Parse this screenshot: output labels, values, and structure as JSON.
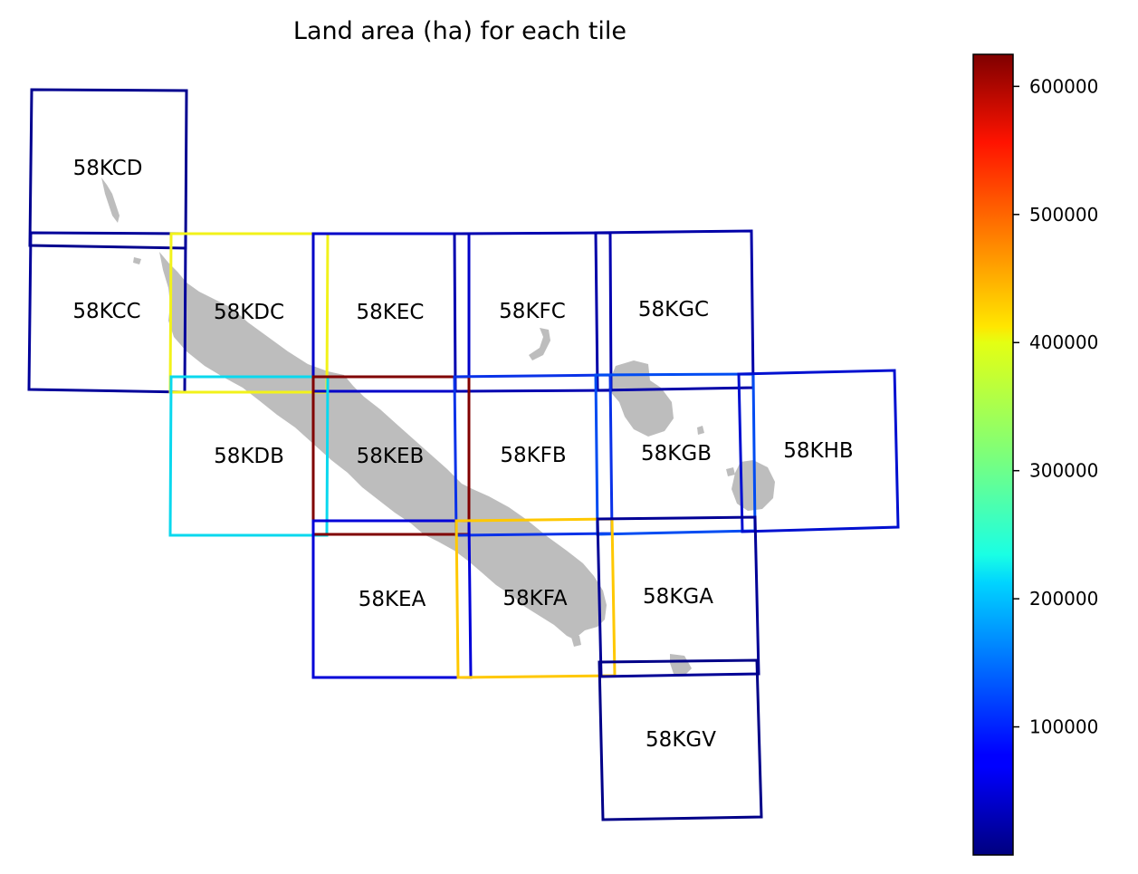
{
  "title": "Land area (ha) for each tile",
  "colorbar": {
    "colormap": "jet",
    "min": 0,
    "max": 625000,
    "ticks": [
      {
        "value": 100000,
        "label": "100000"
      },
      {
        "value": 200000,
        "label": "200000"
      },
      {
        "value": 300000,
        "label": "300000"
      },
      {
        "value": 400000,
        "label": "400000"
      },
      {
        "value": 500000,
        "label": "500000"
      },
      {
        "value": 600000,
        "label": "600000"
      }
    ]
  },
  "tiles": [
    {
      "name": "58KCD",
      "color": "#00008f"
    },
    {
      "name": "58KCC",
      "color": "#00009a"
    },
    {
      "name": "58KDC",
      "color": "#f2f21a"
    },
    {
      "name": "58KEC",
      "color": "#0000c8"
    },
    {
      "name": "58KFC",
      "color": "#0000b0"
    },
    {
      "name": "58KGC",
      "color": "#0000a8"
    },
    {
      "name": "58KDB",
      "color": "#0ad8ee"
    },
    {
      "name": "58KEB",
      "color": "#800000"
    },
    {
      "name": "58KFB",
      "color": "#0a32e8"
    },
    {
      "name": "58KGB",
      "color": "#004cf2"
    },
    {
      "name": "58KHB",
      "color": "#0010d0"
    },
    {
      "name": "58KEA",
      "color": "#0000d8"
    },
    {
      "name": "58KFA",
      "color": "#ffc800"
    },
    {
      "name": "58KGA",
      "color": "#000096"
    },
    {
      "name": "58KGV",
      "color": "#000088"
    }
  ],
  "land_color": "#bdbdbd"
}
